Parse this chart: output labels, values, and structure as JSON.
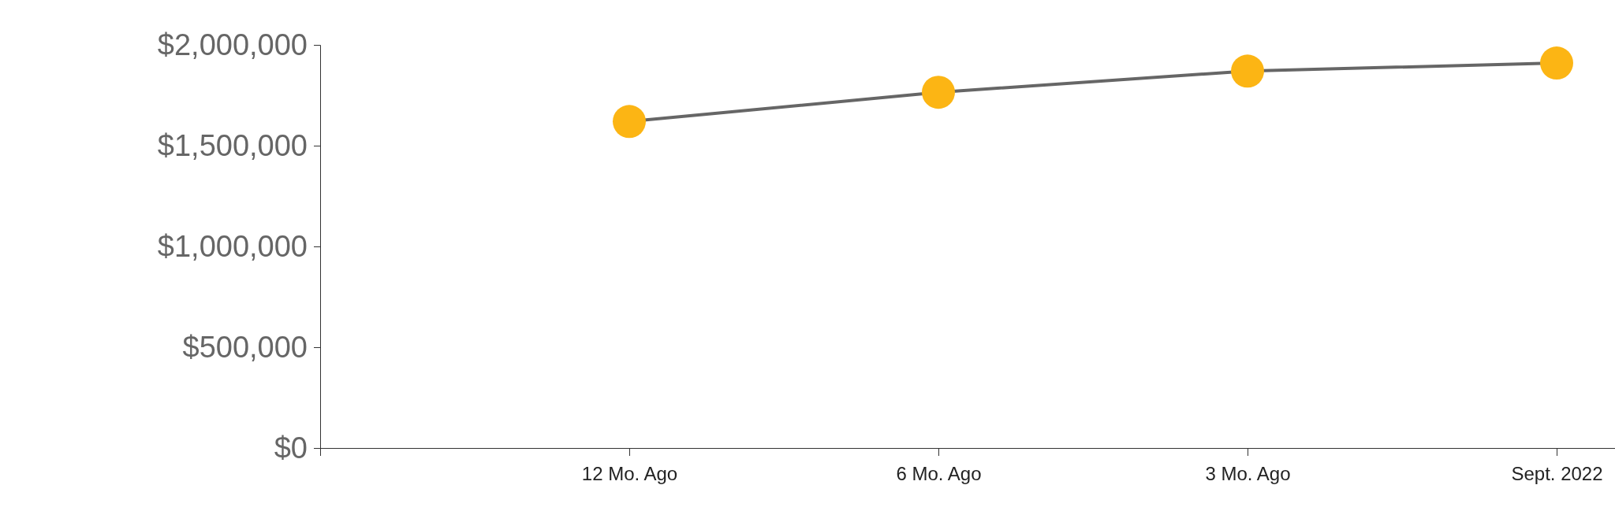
{
  "chart_data": {
    "type": "line",
    "categories": [
      null,
      "12 Mo. Ago",
      "6 Mo. Ago",
      "3 Mo. Ago",
      "Sept. 2022"
    ],
    "series": [
      {
        "color": "#666666",
        "colors": [
          null,
          "#fcb514",
          "#fcb514",
          "#fcb514",
          "#fcb514"
        ],
        "values": [
          null,
          1620000,
          1765000,
          1870000,
          1910000
        ]
      }
    ],
    "marker": "circle",
    "ylim": [
      0,
      2000000
    ],
    "yticks": [
      {
        "value": 0,
        "label": "$0"
      },
      {
        "value": 500000,
        "label": "$500,000"
      },
      {
        "value": 1000000,
        "label": "$1,000,000"
      },
      {
        "value": 1500000,
        "label": "$1,500,000"
      },
      {
        "value": 2000000,
        "label": "$2,000,000"
      }
    ],
    "grid": false
  }
}
